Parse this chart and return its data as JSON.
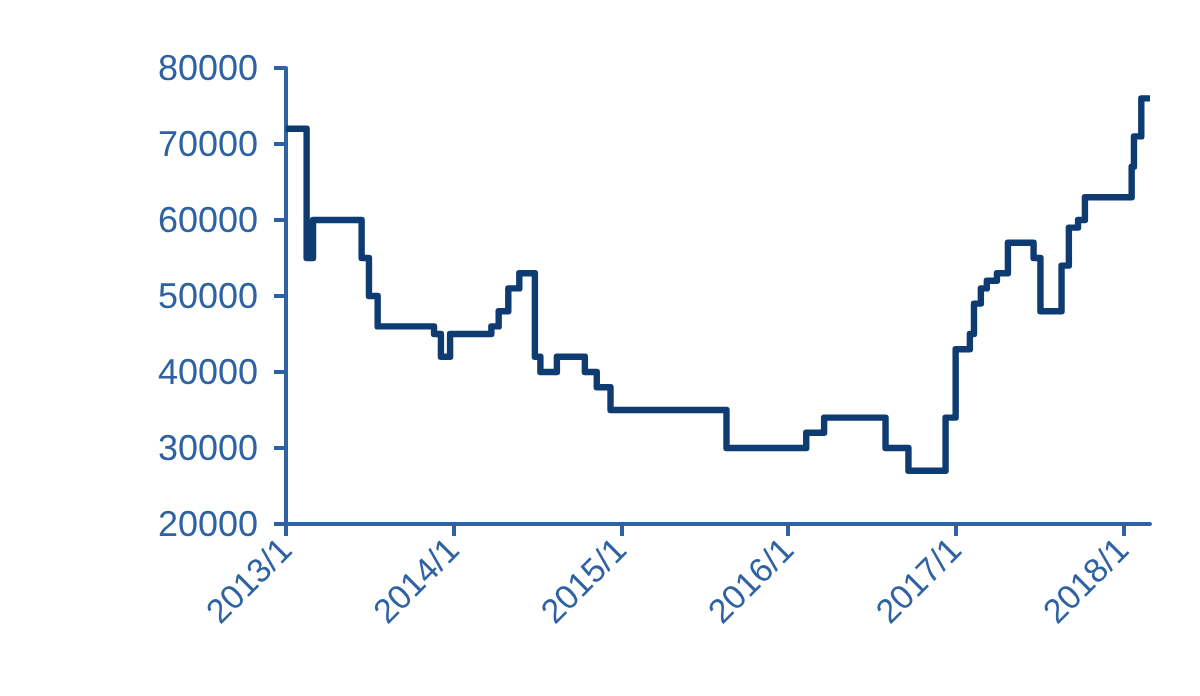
{
  "chart_data": {
    "type": "step",
    "x": [
      "2013-01-01",
      "2013-02-15",
      "2013-03-01",
      "2013-06-15",
      "2013-07-01",
      "2013-07-20",
      "2013-11-20",
      "2013-12-05",
      "2013-12-25",
      "2014-03-25",
      "2014-04-10",
      "2014-05-01",
      "2014-05-25",
      "2014-06-28",
      "2014-07-10",
      "2014-08-15",
      "2014-10-15",
      "2014-11-10",
      "2014-12-10",
      "2015-08-20",
      "2016-02-10",
      "2016-03-20",
      "2016-08-01",
      "2016-09-20",
      "2016-12-10",
      "2017-01-01",
      "2017-02-01",
      "2017-02-10",
      "2017-02-25",
      "2017-03-10",
      "2017-04-01",
      "2017-04-25",
      "2017-06-20",
      "2017-07-05",
      "2017-08-20",
      "2017-09-05",
      "2017-09-25",
      "2017-10-10",
      "2018-01-20",
      "2018-01-25",
      "2018-02-10",
      "2018-03-01"
    ],
    "series": [
      {
        "color": "#0d3b72",
        "values": [
          72000,
          55000,
          60000,
          55000,
          50000,
          46000,
          45000,
          42000,
          45000,
          46000,
          48000,
          51000,
          53000,
          42000,
          40000,
          42000,
          40000,
          38000,
          35000,
          30000,
          32000,
          34000,
          30000,
          27000,
          34000,
          43000,
          45000,
          49000,
          51000,
          52000,
          53000,
          57000,
          55000,
          48000,
          54000,
          59000,
          60000,
          63000,
          67000,
          71000,
          76000,
          76000
        ]
      }
    ],
    "xlim": [
      "2013-01-01",
      "2018-03-01"
    ],
    "xticks": [
      {
        "value": "2013-01-01",
        "label": "2013/1"
      },
      {
        "value": "2014-01-01",
        "label": "2014/1"
      },
      {
        "value": "2015-01-01",
        "label": "2015/1"
      },
      {
        "value": "2016-01-01",
        "label": "2016/1"
      },
      {
        "value": "2017-01-01",
        "label": "2017/1"
      },
      {
        "value": "2018-01-01",
        "label": "2018/1"
      }
    ],
    "ylim": [
      20000,
      80000
    ],
    "yticks": [
      20000,
      30000,
      40000,
      50000,
      60000,
      70000,
      80000
    ],
    "grid": false,
    "marker": "none",
    "line_style": "solid"
  }
}
